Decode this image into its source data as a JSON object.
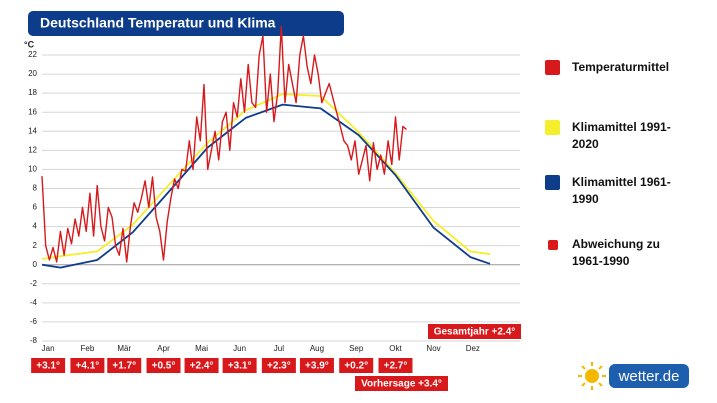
{
  "chart_data": {
    "type": "line",
    "title": "Deutschland Temperatur und Klima",
    "y_label": "°C",
    "xlim": [
      0,
      365
    ],
    "xticks": [
      {
        "value": 5,
        "label": "Jan"
      },
      {
        "value": 37,
        "label": "Feb"
      },
      {
        "value": 67,
        "label": "Mär"
      },
      {
        "value": 99,
        "label": "Apr"
      },
      {
        "value": 130,
        "label": "Mai"
      },
      {
        "value": 161,
        "label": "Jun"
      },
      {
        "value": 193,
        "label": "Jul"
      },
      {
        "value": 224,
        "label": "Aug"
      },
      {
        "value": 256,
        "label": "Sep"
      },
      {
        "value": 288,
        "label": "Okt"
      },
      {
        "value": 319,
        "label": "Nov"
      },
      {
        "value": 351,
        "label": "Dez"
      }
    ],
    "ylim": [
      -8,
      22
    ],
    "yticks": [
      -8,
      -6,
      -4,
      -2,
      0,
      2,
      4,
      6,
      8,
      10,
      12,
      14,
      16,
      18,
      20,
      22
    ],
    "grid": true,
    "series": [
      {
        "name": "Temperaturmittel",
        "color": "#d7191c",
        "x": [
          0,
          3,
          6,
          9,
          12,
          15,
          18,
          21,
          24,
          27,
          30,
          33,
          36,
          39,
          42,
          45,
          48,
          51,
          54,
          57,
          60,
          63,
          66,
          69,
          72,
          75,
          78,
          81,
          84,
          87,
          90,
          93,
          96,
          99,
          102,
          105,
          108,
          111,
          114,
          117,
          120,
          123,
          126,
          129,
          132,
          135,
          138,
          141,
          144,
          147,
          150,
          153,
          156,
          159,
          162,
          165,
          168,
          171,
          174,
          177,
          180,
          183,
          186,
          189,
          192,
          195,
          198,
          201,
          204,
          207,
          210,
          213,
          216,
          219,
          222,
          225,
          228,
          231,
          234,
          237,
          240,
          243,
          246,
          249,
          252,
          255,
          258,
          261,
          264,
          267,
          270,
          273,
          276,
          279,
          282,
          285,
          288,
          291,
          294,
          297
        ],
        "values": [
          9.3,
          2,
          0.5,
          1.8,
          0.3,
          3.5,
          1,
          3.8,
          2.2,
          4.8,
          3,
          6,
          3.5,
          7.5,
          3,
          8.3,
          4,
          2.5,
          6,
          5,
          2,
          1,
          3.8,
          0.3,
          4,
          6.5,
          5.5,
          7,
          8.8,
          6,
          9.2,
          5,
          3.5,
          0.5,
          4.5,
          7,
          9,
          8,
          10,
          9.8,
          13,
          10,
          15.5,
          13,
          18.9,
          10,
          12,
          14,
          11,
          15,
          16,
          12,
          17,
          15.5,
          19.5,
          16,
          21,
          17,
          16.5,
          22,
          24,
          16,
          20,
          15,
          18,
          25,
          17,
          21,
          19,
          17,
          22,
          24,
          20.8,
          19,
          22,
          20,
          17,
          18,
          19,
          17.5,
          16,
          14.5,
          13,
          12.5,
          11,
          13,
          9.5,
          11,
          12.5,
          8.8,
          12.8,
          10,
          11.5,
          9.5,
          13,
          10.5,
          15.5,
          11,
          14.5,
          14.2
        ]
      },
      {
        "name": "Klimamittel 1991-2020",
        "color": "#f5ee2a",
        "x": [
          0,
          15,
          45,
          74,
          105,
          135,
          166,
          196,
          227,
          258,
          288,
          319,
          349,
          365
        ],
        "values": [
          0.6,
          0.9,
          1.4,
          4.2,
          8.6,
          12.8,
          16.2,
          17.9,
          17.7,
          13.9,
          9.6,
          4.6,
          1.4,
          1.1
        ]
      },
      {
        "name": "Klimamittel 1961-1990",
        "color": "#0d3c8a",
        "x": [
          0,
          15,
          45,
          74,
          105,
          135,
          166,
          196,
          227,
          258,
          288,
          319,
          349,
          365
        ],
        "values": [
          0,
          -0.3,
          0.5,
          3.4,
          7.9,
          12.3,
          15.4,
          16.8,
          16.4,
          13.6,
          9.4,
          3.9,
          0.8,
          0.1
        ]
      }
    ],
    "deviations": {
      "name": "Abweichung zu 1961-1990",
      "color": "#d7191c",
      "values": [
        3.1,
        4.1,
        1.7,
        0.5,
        2.4,
        3.1,
        2.3,
        3.9,
        0.2,
        2.7
      ],
      "value_labels": [
        "+3.1°",
        "+4.1°",
        "+1.7°",
        "+0.5°",
        "+2.4°",
        "+3.1°",
        "+2.3°",
        "+3.9°",
        "+0.2°",
        "+2.7°"
      ]
    },
    "annotations": [
      "Gesamtjahr +2.4°",
      "Vorhersage +3.4°"
    ],
    "logo": "wetter.de"
  }
}
